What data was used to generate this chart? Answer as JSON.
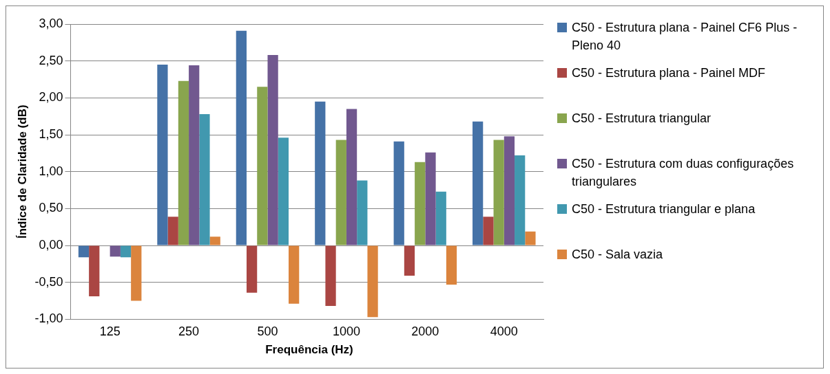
{
  "chart_data": {
    "type": "bar",
    "xlabel": "Frequência (Hz)",
    "ylabel": "Índice de Claridade (dB)",
    "categories": [
      "125",
      "250",
      "500",
      "1000",
      "2000",
      "4000"
    ],
    "series": [
      {
        "name": "C50 - Estrutura plana - Painel CF6 Plus - Pleno 40",
        "color": "#4572a7",
        "values": [
          -0.16,
          2.45,
          2.91,
          1.95,
          1.41,
          1.68
        ]
      },
      {
        "name": "C50 - Estrutura plana - Painel MDF",
        "color": "#aa4643",
        "values": [
          -0.69,
          0.39,
          -0.64,
          -0.82,
          -0.41,
          0.39
        ]
      },
      {
        "name": "C50 - Estrutura triangular",
        "color": "#89a54e",
        "values": [
          0,
          2.23,
          2.15,
          1.43,
          1.13,
          1.43
        ]
      },
      {
        "name": "C50 - Estrutura com duas configurações triangulares",
        "color": "#71588f",
        "values": [
          -0.15,
          2.44,
          2.58,
          1.85,
          1.26,
          1.48
        ]
      },
      {
        "name": "C50 - Estrutura triangular e plana",
        "color": "#4198af",
        "values": [
          -0.16,
          1.78,
          1.46,
          0.88,
          0.73,
          1.22
        ]
      },
      {
        "name": "C50 - Sala vazia",
        "color": "#db843d",
        "values": [
          -0.75,
          0.12,
          -0.79,
          -0.97,
          -0.53,
          0.19
        ]
      }
    ],
    "ylim": [
      -1,
      3
    ],
    "yticks": [
      {
        "value": -1,
        "label": "-1,00"
      },
      {
        "value": -0.5,
        "label": "-0,50"
      },
      {
        "value": 0,
        "label": "0,00"
      },
      {
        "value": 0.5,
        "label": "0,50"
      },
      {
        "value": 1,
        "label": "1,00"
      },
      {
        "value": 1.5,
        "label": "1,50"
      },
      {
        "value": 2,
        "label": "2,00"
      },
      {
        "value": 2.5,
        "label": "2,50"
      },
      {
        "value": 3,
        "label": "3,00"
      }
    ],
    "grid": "y",
    "legend": "right"
  }
}
